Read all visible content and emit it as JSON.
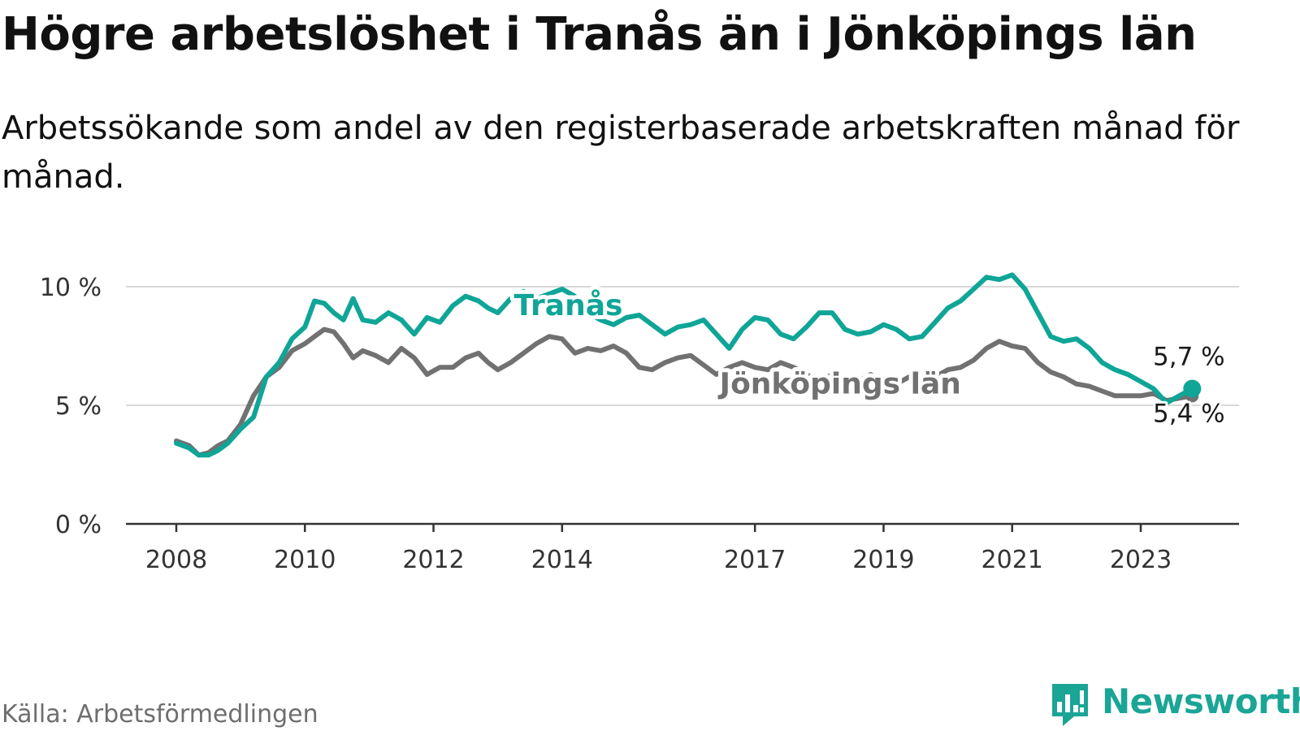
{
  "title": "Högre arbetslöshet i Tranås än i Jönköpings län",
  "subtitle": "Arbetssökande som andel av den registerbaserade arbetskraften månad för månad.",
  "source": "Källa: Arbetsförmedlingen",
  "brand": {
    "name": "Newsworthy",
    "icon": "newsworthy-bar-chart-logo-icon"
  },
  "colors": {
    "tranas": "#0fa597",
    "jonkoping": "#717171",
    "grid": "#d9d9d9",
    "axis": "#333333"
  },
  "chart_data": {
    "type": "line",
    "title": "Högre arbetslöshet i Tranås än i Jönköpings län",
    "xlabel": "",
    "ylabel": "",
    "unit": "%",
    "xlim": [
      2008,
      2024.5
    ],
    "ylim": [
      0,
      10
    ],
    "grid": true,
    "x_ticks": [
      {
        "value": 2008,
        "label": "2008"
      },
      {
        "value": 2010,
        "label": "2010"
      },
      {
        "value": 2012,
        "label": "2012"
      },
      {
        "value": 2014,
        "label": "2014"
      },
      {
        "value": 2017,
        "label": "2017"
      },
      {
        "value": 2019,
        "label": "2019"
      },
      {
        "value": 2021,
        "label": "2021"
      },
      {
        "value": 2023,
        "label": "2023"
      }
    ],
    "y_ticks": [
      {
        "value": 0,
        "label": "0 %"
      },
      {
        "value": 5,
        "label": "5 %"
      },
      {
        "value": 10,
        "label": "10 %"
      }
    ],
    "series": [
      {
        "name": "Jönköpings län",
        "key": "jonkoping",
        "end_label": "5,4 %",
        "points": [
          [
            2008.0,
            3.5
          ],
          [
            2008.2,
            3.3
          ],
          [
            2008.35,
            2.9
          ],
          [
            2008.5,
            3.0
          ],
          [
            2008.65,
            3.3
          ],
          [
            2008.8,
            3.5
          ],
          [
            2009.0,
            4.2
          ],
          [
            2009.2,
            5.4
          ],
          [
            2009.4,
            6.2
          ],
          [
            2009.6,
            6.6
          ],
          [
            2009.8,
            7.3
          ],
          [
            2010.0,
            7.6
          ],
          [
            2010.15,
            7.9
          ],
          [
            2010.3,
            8.2
          ],
          [
            2010.45,
            8.1
          ],
          [
            2010.6,
            7.6
          ],
          [
            2010.75,
            7.0
          ],
          [
            2010.9,
            7.3
          ],
          [
            2011.1,
            7.1
          ],
          [
            2011.3,
            6.8
          ],
          [
            2011.5,
            7.4
          ],
          [
            2011.7,
            7.0
          ],
          [
            2011.9,
            6.3
          ],
          [
            2012.1,
            6.6
          ],
          [
            2012.3,
            6.6
          ],
          [
            2012.5,
            7.0
          ],
          [
            2012.7,
            7.2
          ],
          [
            2012.85,
            6.8
          ],
          [
            2013.0,
            6.5
          ],
          [
            2013.2,
            6.8
          ],
          [
            2013.4,
            7.2
          ],
          [
            2013.6,
            7.6
          ],
          [
            2013.8,
            7.9
          ],
          [
            2014.0,
            7.8
          ],
          [
            2014.2,
            7.2
          ],
          [
            2014.4,
            7.4
          ],
          [
            2014.6,
            7.3
          ],
          [
            2014.8,
            7.5
          ],
          [
            2015.0,
            7.2
          ],
          [
            2015.2,
            6.6
          ],
          [
            2015.4,
            6.5
          ],
          [
            2015.6,
            6.8
          ],
          [
            2015.8,
            7.0
          ],
          [
            2016.0,
            7.1
          ],
          [
            2016.2,
            6.7
          ],
          [
            2016.4,
            6.3
          ],
          [
            2016.6,
            6.6
          ],
          [
            2016.8,
            6.8
          ],
          [
            2017.0,
            6.6
          ],
          [
            2017.2,
            6.5
          ],
          [
            2017.4,
            6.8
          ],
          [
            2017.6,
            6.6
          ],
          [
            2017.8,
            6.3
          ],
          [
            2018.0,
            6.0
          ],
          [
            2018.2,
            6.3
          ],
          [
            2018.4,
            6.1
          ],
          [
            2018.6,
            6.0
          ],
          [
            2018.8,
            6.3
          ],
          [
            2019.0,
            5.8
          ],
          [
            2019.2,
            5.9
          ],
          [
            2019.4,
            6.2
          ],
          [
            2019.6,
            6.0
          ],
          [
            2019.8,
            6.2
          ],
          [
            2020.0,
            6.5
          ],
          [
            2020.2,
            6.6
          ],
          [
            2020.4,
            6.9
          ],
          [
            2020.6,
            7.4
          ],
          [
            2020.8,
            7.7
          ],
          [
            2021.0,
            7.5
          ],
          [
            2021.2,
            7.4
          ],
          [
            2021.4,
            6.8
          ],
          [
            2021.6,
            6.4
          ],
          [
            2021.8,
            6.2
          ],
          [
            2022.0,
            5.9
          ],
          [
            2022.2,
            5.8
          ],
          [
            2022.4,
            5.6
          ],
          [
            2022.6,
            5.4
          ],
          [
            2022.8,
            5.4
          ],
          [
            2023.0,
            5.4
          ],
          [
            2023.2,
            5.5
          ],
          [
            2023.4,
            5.2
          ],
          [
            2023.6,
            5.3
          ],
          [
            2023.8,
            5.4
          ]
        ]
      },
      {
        "name": "Tranås",
        "key": "tranas",
        "end_label": "5,7 %",
        "points": [
          [
            2008.0,
            3.4
          ],
          [
            2008.2,
            3.2
          ],
          [
            2008.35,
            2.9
          ],
          [
            2008.5,
            2.9
          ],
          [
            2008.65,
            3.1
          ],
          [
            2008.8,
            3.4
          ],
          [
            2009.0,
            4.0
          ],
          [
            2009.2,
            4.5
          ],
          [
            2009.4,
            6.2
          ],
          [
            2009.6,
            6.8
          ],
          [
            2009.8,
            7.8
          ],
          [
            2010.0,
            8.3
          ],
          [
            2010.15,
            9.4
          ],
          [
            2010.3,
            9.3
          ],
          [
            2010.45,
            8.9
          ],
          [
            2010.6,
            8.6
          ],
          [
            2010.75,
            9.5
          ],
          [
            2010.9,
            8.6
          ],
          [
            2011.1,
            8.5
          ],
          [
            2011.3,
            8.9
          ],
          [
            2011.5,
            8.6
          ],
          [
            2011.7,
            8.0
          ],
          [
            2011.9,
            8.7
          ],
          [
            2012.1,
            8.5
          ],
          [
            2012.3,
            9.2
          ],
          [
            2012.5,
            9.6
          ],
          [
            2012.7,
            9.4
          ],
          [
            2012.85,
            9.1
          ],
          [
            2013.0,
            8.9
          ],
          [
            2013.2,
            9.5
          ],
          [
            2013.4,
            9.8
          ],
          [
            2013.6,
            9.5
          ],
          [
            2013.8,
            9.7
          ],
          [
            2014.0,
            9.9
          ],
          [
            2014.2,
            9.6
          ],
          [
            2014.4,
            8.9
          ],
          [
            2014.6,
            8.6
          ],
          [
            2014.8,
            8.4
          ],
          [
            2015.0,
            8.7
          ],
          [
            2015.2,
            8.8
          ],
          [
            2015.4,
            8.4
          ],
          [
            2015.6,
            8.0
          ],
          [
            2015.8,
            8.3
          ],
          [
            2016.0,
            8.4
          ],
          [
            2016.2,
            8.6
          ],
          [
            2016.4,
            8.0
          ],
          [
            2016.6,
            7.4
          ],
          [
            2016.8,
            8.2
          ],
          [
            2017.0,
            8.7
          ],
          [
            2017.2,
            8.6
          ],
          [
            2017.4,
            8.0
          ],
          [
            2017.6,
            7.8
          ],
          [
            2017.8,
            8.3
          ],
          [
            2018.0,
            8.9
          ],
          [
            2018.2,
            8.9
          ],
          [
            2018.4,
            8.2
          ],
          [
            2018.6,
            8.0
          ],
          [
            2018.8,
            8.1
          ],
          [
            2019.0,
            8.4
          ],
          [
            2019.2,
            8.2
          ],
          [
            2019.4,
            7.8
          ],
          [
            2019.6,
            7.9
          ],
          [
            2019.8,
            8.5
          ],
          [
            2020.0,
            9.1
          ],
          [
            2020.2,
            9.4
          ],
          [
            2020.4,
            9.9
          ],
          [
            2020.6,
            10.4
          ],
          [
            2020.8,
            10.3
          ],
          [
            2021.0,
            10.5
          ],
          [
            2021.2,
            9.9
          ],
          [
            2021.4,
            8.9
          ],
          [
            2021.6,
            7.9
          ],
          [
            2021.8,
            7.7
          ],
          [
            2022.0,
            7.8
          ],
          [
            2022.2,
            7.4
          ],
          [
            2022.4,
            6.8
          ],
          [
            2022.6,
            6.5
          ],
          [
            2022.8,
            6.3
          ],
          [
            2023.0,
            6.0
          ],
          [
            2023.2,
            5.7
          ],
          [
            2023.4,
            5.1
          ],
          [
            2023.6,
            5.4
          ],
          [
            2023.8,
            5.7
          ]
        ]
      }
    ],
    "series_labels": [
      {
        "series": "Tranås",
        "text": "Tranås",
        "anchor": [
          2013.25,
          8.8
        ]
      },
      {
        "series": "Jönköpings län",
        "text": "Jönköpings län",
        "anchor": [
          2016.45,
          5.5
        ]
      }
    ],
    "end_labels": [
      {
        "series": "Tranås",
        "text": "5,7 %",
        "anchor": [
          2023.75,
          6.7
        ]
      },
      {
        "series": "Jönköpings län",
        "text": "5,4 %",
        "anchor": [
          2023.75,
          4.3
        ]
      }
    ]
  }
}
